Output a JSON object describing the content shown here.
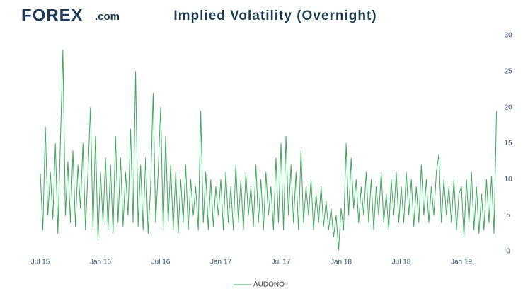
{
  "header": {
    "logo": "FOREX",
    "logo_suffix": ".com"
  },
  "chart_data": {
    "type": "line",
    "title": "Implied Volatility (Overnight)",
    "categories": [
      "Jul 15",
      null,
      null,
      null,
      null,
      null,
      null,
      null,
      null,
      null,
      null,
      null,
      null,
      null,
      null,
      null,
      null,
      null,
      null,
      null,
      null,
      null,
      null,
      null,
      "Jan 16",
      null,
      null,
      null,
      null,
      null,
      null,
      null,
      null,
      null,
      null,
      null,
      null,
      null,
      null,
      null,
      null,
      null,
      null,
      null,
      null,
      null,
      null,
      null,
      "Jul 16",
      null,
      null,
      null,
      null,
      null,
      null,
      null,
      null,
      null,
      null,
      null,
      null,
      null,
      null,
      null,
      null,
      null,
      null,
      null,
      null,
      null,
      null,
      null,
      "Jan 17",
      null,
      null,
      null,
      null,
      null,
      null,
      null,
      null,
      null,
      null,
      null,
      null,
      null,
      null,
      null,
      null,
      null,
      null,
      null,
      null,
      null,
      null,
      null,
      "Jul 17",
      null,
      null,
      null,
      null,
      null,
      null,
      null,
      null,
      null,
      null,
      null,
      null,
      null,
      null,
      null,
      null,
      null,
      null,
      null,
      null,
      null,
      null,
      null,
      "Jan 18",
      null,
      null,
      null,
      null,
      null,
      null,
      null,
      null,
      null,
      null,
      null,
      null,
      null,
      null,
      null,
      null,
      null,
      null,
      null,
      null,
      null,
      null,
      null,
      "Jul 18",
      null,
      null,
      null,
      null,
      null,
      null,
      null,
      null,
      null,
      null,
      null,
      null,
      null,
      null,
      null,
      null,
      null,
      null,
      null,
      null,
      null,
      null,
      null,
      "Jan 19",
      null,
      null,
      null,
      null,
      null,
      null,
      null,
      null,
      null,
      null,
      null,
      null,
      null,
      null
    ],
    "series": [
      {
        "name": "AUDONO=",
        "color": "#3aaa5c",
        "values": [
          10.8,
          3,
          17.3,
          5,
          11,
          4.5,
          15,
          2.5,
          15.3,
          28,
          5,
          12.5,
          4,
          14,
          3.5,
          12,
          6,
          15,
          3,
          11,
          20,
          3,
          16,
          1.5,
          11,
          4,
          13,
          3,
          12,
          2.5,
          16,
          4,
          13,
          3.5,
          11,
          5,
          17,
          4,
          25,
          3.5,
          12,
          3,
          13,
          2.5,
          9,
          22,
          4,
          11,
          20,
          3,
          16,
          4,
          12,
          3,
          11,
          2.5,
          10,
          4,
          12,
          3,
          10,
          5,
          9,
          3,
          19.5,
          4,
          11,
          3,
          10,
          3.5,
          9,
          5,
          10,
          3,
          11,
          4,
          9,
          3,
          12,
          4,
          10,
          3,
          11,
          5,
          9,
          3.5,
          12,
          4,
          10,
          3,
          11,
          5,
          9,
          3,
          13,
          4,
          15,
          3,
          16,
          5,
          12,
          4,
          11,
          3,
          14,
          4,
          9,
          5,
          10,
          3,
          8,
          4,
          9,
          3.5,
          7,
          3,
          6,
          2,
          5,
          0.2,
          6,
          3,
          15,
          5,
          13,
          6,
          10,
          4,
          9,
          5,
          11,
          4,
          10,
          3,
          9,
          5,
          11,
          4,
          8,
          3,
          10,
          5,
          11,
          4,
          9,
          4,
          11,
          5,
          10,
          3.5,
          9,
          4,
          12,
          5,
          10,
          4,
          9,
          5,
          11,
          13.5,
          4,
          10,
          5,
          9,
          4,
          10,
          3,
          8,
          9,
          2,
          10,
          4,
          11,
          3,
          9,
          2.5,
          8,
          3,
          10,
          4,
          10.5,
          2.5,
          19.5
        ]
      }
    ],
    "ylim": [
      0,
      30
    ],
    "yticks": [
      0,
      5,
      10,
      15,
      20,
      25,
      30
    ],
    "grid": false
  }
}
